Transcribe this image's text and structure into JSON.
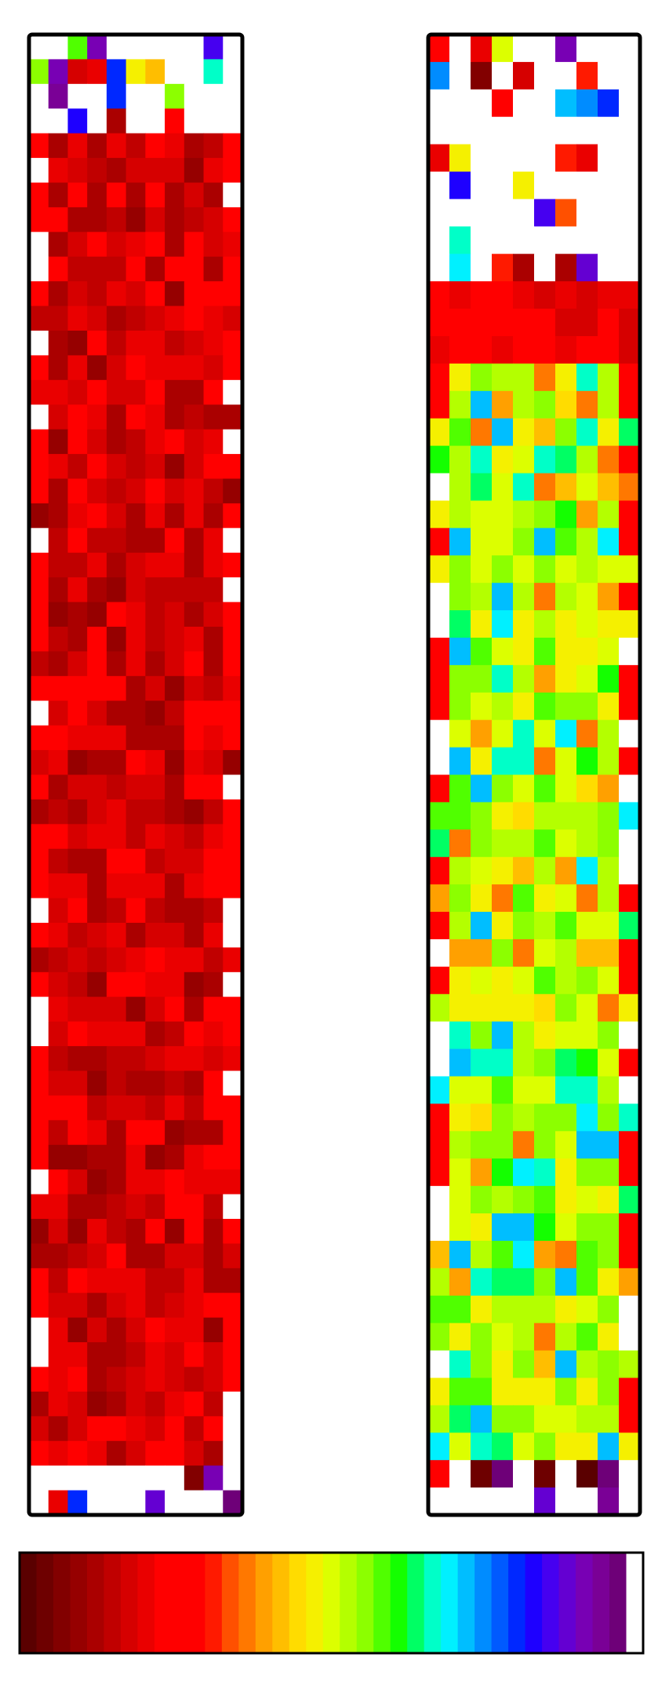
{
  "chart_data": {
    "type": "heatmap",
    "title": "",
    "xlabel": "",
    "ylabel": "",
    "grid": false,
    "legend": "bottom",
    "panels": [
      {
        "name": "",
        "cols": 11,
        "rows": 60,
        "dominant_band": 6,
        "noise_range": [
          3,
          10
        ],
        "top_sparse_rows": 4,
        "bottom_sparse_rows": 2,
        "hot_cap_rows": 0
      },
      {
        "name": "",
        "cols": 10,
        "rows": 54,
        "dominant_band": 19,
        "noise_range": [
          13,
          26
        ],
        "top_sparse_rows": 9,
        "bottom_sparse_rows": 2,
        "hot_cap_rows": 3
      }
    ],
    "colorbar": {
      "orientation": "horizontal",
      "colors": [
        "#5a0000",
        "#6e0000",
        "#820000",
        "#960000",
        "#aa0000",
        "#c00000",
        "#d60000",
        "#ea0000",
        "#ff0000",
        "#ff0000",
        "#ff0000",
        "#ff1a00",
        "#ff5000",
        "#ff7800",
        "#ffa000",
        "#ffbe00",
        "#ffdc00",
        "#f5f000",
        "#dcff00",
        "#b4ff00",
        "#8cff00",
        "#50ff00",
        "#14ff00",
        "#00ff64",
        "#00ffc8",
        "#00f0ff",
        "#00beff",
        "#008cff",
        "#005aff",
        "#0028ff",
        "#1e00ff",
        "#4600f0",
        "#6400d2",
        "#7800b4",
        "#7a0096",
        "#6e0078",
        "#ffffff"
      ]
    }
  }
}
